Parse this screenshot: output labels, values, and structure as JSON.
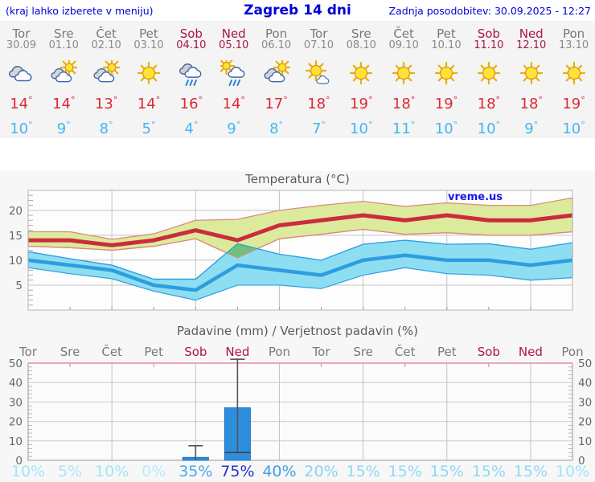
{
  "header": {
    "left_note": "(kraj lahko izberete v meniju)",
    "title": "Zagreb 14 dni",
    "updated": "Zadnja posodobitev: 30.09.2025 - 12:27"
  },
  "colors": {
    "accent_blue": "#0000d8",
    "weekend": "#ad1349",
    "temp_max": "#e02834",
    "temp_min": "#41b6f2",
    "strip_bg": "#f4f4f4",
    "panel_bg": "#f7f7f7"
  },
  "forecast": {
    "days": [
      {
        "name": "Tor",
        "date": "30.09",
        "weekend": false,
        "icon": "cloudy",
        "tmax": 14,
        "tmin": 10
      },
      {
        "name": "Sre",
        "date": "01.10",
        "weekend": false,
        "icon": "partly-sunny",
        "tmax": 14,
        "tmin": 9
      },
      {
        "name": "Čet",
        "date": "02.10",
        "weekend": false,
        "icon": "partly-sunny",
        "tmax": 13,
        "tmin": 8
      },
      {
        "name": "Pet",
        "date": "03.10",
        "weekend": false,
        "icon": "sunny",
        "tmax": 14,
        "tmin": 5
      },
      {
        "name": "Sob",
        "date": "04.10",
        "weekend": true,
        "icon": "rain",
        "tmax": 16,
        "tmin": 4
      },
      {
        "name": "Ned",
        "date": "05.10",
        "weekend": true,
        "icon": "sun-rain",
        "tmax": 14,
        "tmin": 9
      },
      {
        "name": "Pon",
        "date": "06.10",
        "weekend": false,
        "icon": "partly-sunny",
        "tmax": 17,
        "tmin": 8
      },
      {
        "name": "Tor",
        "date": "07.10",
        "weekend": false,
        "icon": "mostly-sunny",
        "tmax": 18,
        "tmin": 7
      },
      {
        "name": "Sre",
        "date": "08.10",
        "weekend": false,
        "icon": "sunny",
        "tmax": 19,
        "tmin": 10
      },
      {
        "name": "Čet",
        "date": "09.10",
        "weekend": false,
        "icon": "sunny",
        "tmax": 18,
        "tmin": 11
      },
      {
        "name": "Pet",
        "date": "10.10",
        "weekend": false,
        "icon": "sunny",
        "tmax": 19,
        "tmin": 10
      },
      {
        "name": "Sob",
        "date": "11.10",
        "weekend": true,
        "icon": "sunny",
        "tmax": 18,
        "tmin": 10
      },
      {
        "name": "Ned",
        "date": "12.10",
        "weekend": true,
        "icon": "sunny",
        "tmax": 18,
        "tmin": 9
      },
      {
        "name": "Pon",
        "date": "13.10",
        "weekend": false,
        "icon": "sunny",
        "tmax": 19,
        "tmin": 10
      }
    ]
  },
  "chart_data": [
    {
      "type": "line",
      "title": "Temperatura (°C)",
      "watermark": "vreme.us",
      "x_labels": [
        "Tor",
        "Sre",
        "Čet",
        "Pet",
        "Sob",
        "Ned",
        "Pon",
        "Tor",
        "Sre",
        "Čet",
        "Pet",
        "Sob",
        "Ned",
        "Pon"
      ],
      "ylim": [
        0,
        24
      ],
      "yticks": [
        5,
        10,
        15,
        20
      ],
      "grid": true,
      "series": [
        {
          "name": "max temperature",
          "color": "#cb2b3e",
          "band_color": "#dcea9c",
          "band_edge": "#dd8878",
          "values": [
            14,
            14,
            13,
            14,
            16,
            14,
            17,
            18,
            19,
            18,
            19,
            18,
            18,
            19
          ],
          "upper": [
            15.7,
            15.7,
            14.2,
            15.3,
            18,
            18.2,
            20,
            21,
            21.8,
            20.8,
            21.5,
            21,
            21,
            22.5
          ],
          "lower": [
            12.8,
            12.5,
            12,
            12.8,
            14.3,
            10.5,
            14.3,
            15.2,
            16.2,
            15.2,
            15.5,
            15,
            15,
            15.7
          ]
        },
        {
          "name": "min temperature",
          "color": "#2d9ddf",
          "band_color": "#8edef2",
          "band_edge": "#2d9ddf",
          "values": [
            10,
            9,
            8,
            5,
            4,
            9,
            8,
            7,
            10,
            11,
            10,
            10,
            9,
            10
          ],
          "upper": [
            11.7,
            10.3,
            9,
            6.2,
            6.2,
            13.3,
            11.2,
            10,
            13.2,
            14,
            13.2,
            13.3,
            12.2,
            13.5
          ],
          "lower": [
            8.5,
            7.3,
            6.3,
            3.8,
            2,
            5,
            5,
            4.3,
            7,
            8.5,
            7.3,
            7,
            6,
            6.5
          ]
        }
      ],
      "overlap_polygon": {
        "color": "#70c17b",
        "points": [
          [
            4.75,
            11.5
          ],
          [
            5,
            13.3
          ],
          [
            5.44,
            12.3
          ],
          [
            5,
            10.5
          ]
        ]
      }
    },
    {
      "type": "bar",
      "title": "Padavine (mm) / Verjetnost padavin (%)",
      "categories": [
        "Tor",
        "Sre",
        "Čet",
        "Pet",
        "Sob",
        "Ned",
        "Pon",
        "Tor",
        "Sre",
        "Čet",
        "Pet",
        "Sob",
        "Ned",
        "Pon"
      ],
      "weekend_flags": [
        false,
        false,
        false,
        false,
        true,
        true,
        false,
        false,
        false,
        false,
        false,
        true,
        true,
        false
      ],
      "values": [
        0,
        0,
        0,
        0,
        1.5,
        27,
        0,
        0,
        0,
        0,
        0,
        0,
        0,
        0
      ],
      "whisker_high": [
        null,
        null,
        null,
        null,
        7.5,
        52,
        null,
        null,
        null,
        null,
        null,
        null,
        null,
        null
      ],
      "median": [
        null,
        null,
        null,
        null,
        null,
        4,
        null,
        null,
        null,
        null,
        null,
        null,
        null,
        null
      ],
      "probabilities": [
        {
          "label": "10%",
          "color": "#a5e3f8"
        },
        {
          "label": "5%",
          "color": "#abe6f9"
        },
        {
          "label": "10%",
          "color": "#a5e3f8"
        },
        {
          "label": "0%",
          "color": "#b9ebfa"
        },
        {
          "label": "35%",
          "color": "#4aa9e8"
        },
        {
          "label": "75%",
          "color": "#2531c9"
        },
        {
          "label": "40%",
          "color": "#41a0e4"
        },
        {
          "label": "20%",
          "color": "#86d4f2"
        },
        {
          "label": "15%",
          "color": "#8fd9f4"
        },
        {
          "label": "15%",
          "color": "#8fd9f4"
        },
        {
          "label": "15%",
          "color": "#8fd9f4"
        },
        {
          "label": "15%",
          "color": "#8fd9f4"
        },
        {
          "label": "15%",
          "color": "#8fd9f4"
        },
        {
          "label": "10%",
          "color": "#a5e3f8"
        }
      ],
      "ylim": [
        0,
        50
      ],
      "yticks": [
        0,
        10,
        20,
        30,
        40,
        50
      ],
      "bar_color": "#2e8ede",
      "whisker_color": "#555555",
      "top_border_color": "#e88ca6"
    }
  ]
}
